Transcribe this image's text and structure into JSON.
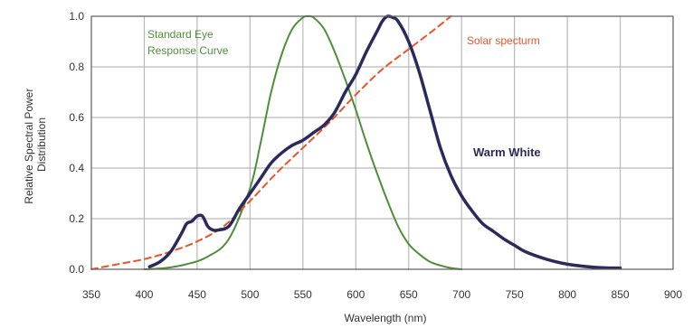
{
  "chart_data": {
    "type": "line",
    "title": "",
    "xlabel": "Wavelength (nm)",
    "ylabel_lines": [
      "Relative Spectral Power",
      "Distribution"
    ],
    "xlim": [
      350,
      900
    ],
    "ylim": [
      0,
      1.0
    ],
    "grid": true,
    "x_ticks": [
      "350",
      "400",
      "450",
      "500",
      "550",
      "600",
      "650",
      "700",
      "750",
      "800",
      "850",
      "900"
    ],
    "y_ticks": [
      "0.0",
      "0.2",
      "0.4",
      "0.6",
      "0.8",
      "1.0"
    ],
    "colors": {
      "eye": "#4e8f3a",
      "solar": "#e8542b",
      "warm": "#2b2a5c",
      "grid": "#b9b9b9",
      "frame": "#666666"
    },
    "series": [
      {
        "name": "Standard Eye Response Curve",
        "name_lines": [
          "Standard Eye",
          "Response Curve"
        ],
        "style": "solid",
        "x": [
          400,
          420,
          440,
          460,
          480,
          500,
          510,
          520,
          530,
          540,
          550,
          555,
          560,
          570,
          580,
          590,
          600,
          610,
          620,
          630,
          640,
          650,
          660,
          670,
          680,
          690,
          700
        ],
        "y": [
          0.0,
          0.005,
          0.02,
          0.05,
          0.12,
          0.32,
          0.5,
          0.7,
          0.85,
          0.95,
          0.995,
          1.0,
          0.995,
          0.95,
          0.86,
          0.75,
          0.63,
          0.5,
          0.38,
          0.27,
          0.17,
          0.1,
          0.06,
          0.03,
          0.015,
          0.005,
          0.0
        ]
      },
      {
        "name": "Solar specturm",
        "name_lines": [
          "Solar specturm"
        ],
        "style": "dashed",
        "x": [
          350,
          375,
          400,
          425,
          450,
          475,
          500,
          525,
          550,
          575,
          600,
          625,
          650,
          675,
          690
        ],
        "y": [
          0.0,
          0.02,
          0.04,
          0.07,
          0.11,
          0.17,
          0.27,
          0.38,
          0.48,
          0.58,
          0.69,
          0.79,
          0.87,
          0.95,
          1.0
        ]
      },
      {
        "name": "Warm White",
        "name_lines": [
          "Warm White"
        ],
        "style": "solid",
        "x": [
          405,
          415,
          425,
          435,
          440,
          445,
          450,
          455,
          460,
          465,
          470,
          480,
          490,
          500,
          510,
          520,
          530,
          540,
          550,
          560,
          570,
          580,
          590,
          600,
          610,
          620,
          625,
          630,
          635,
          640,
          650,
          660,
          670,
          680,
          690,
          700,
          710,
          720,
          730,
          740,
          750,
          760,
          780,
          800,
          820,
          840,
          850
        ],
        "y": [
          0.01,
          0.03,
          0.07,
          0.14,
          0.18,
          0.19,
          0.21,
          0.21,
          0.17,
          0.155,
          0.155,
          0.17,
          0.24,
          0.3,
          0.36,
          0.42,
          0.46,
          0.49,
          0.51,
          0.54,
          0.57,
          0.62,
          0.7,
          0.77,
          0.86,
          0.94,
          0.98,
          1.0,
          0.995,
          0.98,
          0.9,
          0.78,
          0.63,
          0.48,
          0.37,
          0.29,
          0.23,
          0.18,
          0.15,
          0.12,
          0.095,
          0.07,
          0.04,
          0.02,
          0.01,
          0.005,
          0.005
        ]
      }
    ]
  }
}
